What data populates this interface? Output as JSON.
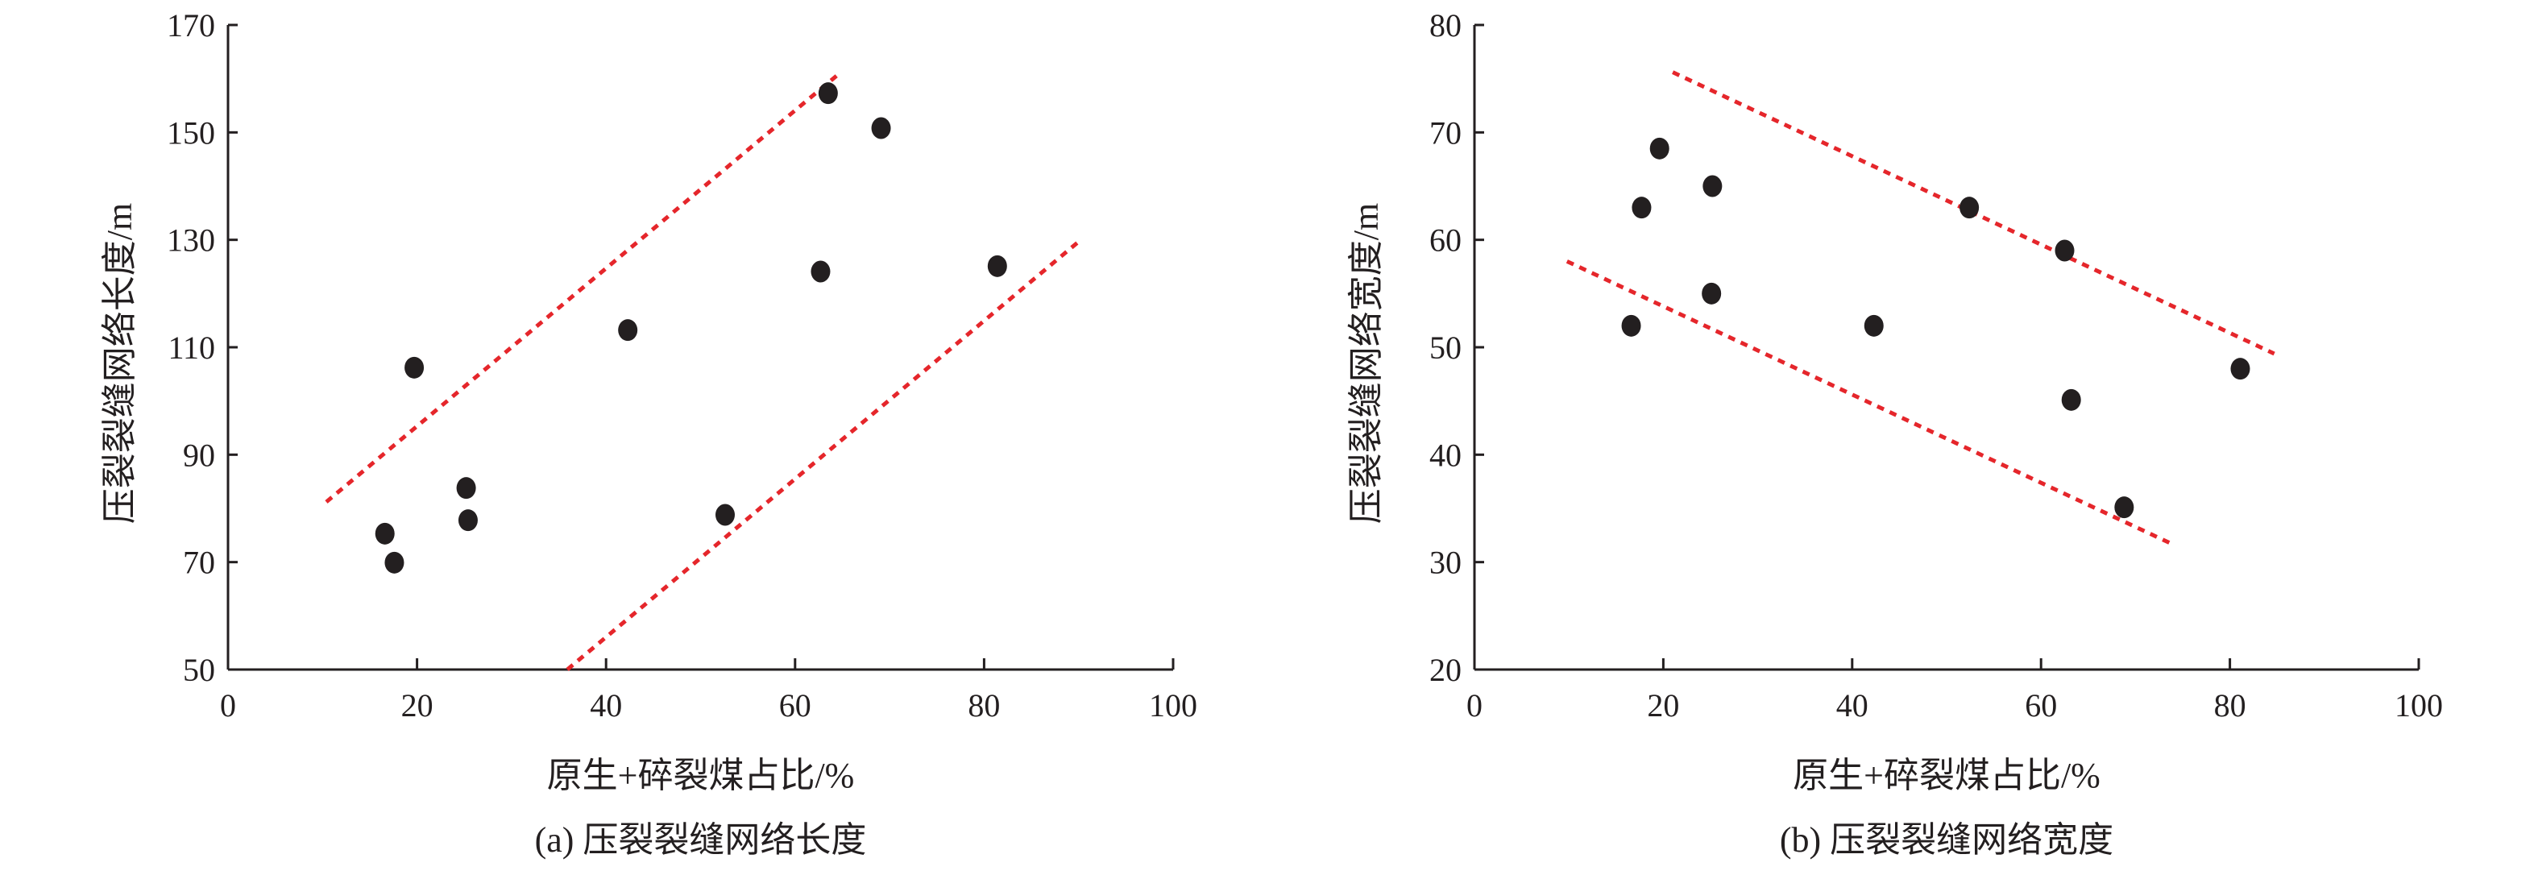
{
  "chart_data": [
    {
      "type": "scatter",
      "caption": "(a) 压裂裂缝网络长度",
      "xlabel": "原生+碎裂煤占比/%",
      "ylabel": "压裂裂缝网络长度/m",
      "xlim": [
        0,
        100
      ],
      "ylim": [
        50,
        170
      ],
      "xticks": [
        0,
        20,
        40,
        60,
        80,
        100
      ],
      "yticks": [
        50,
        70,
        90,
        110,
        130,
        150,
        170
      ],
      "grid": false,
      "points": [
        [
          16.6,
          75.3
        ],
        [
          17.6,
          69.9
        ],
        [
          19.7,
          106.2
        ],
        [
          25.2,
          83.8
        ],
        [
          25.4,
          77.8
        ],
        [
          42.3,
          113.2
        ],
        [
          52.6,
          78.8
        ],
        [
          62.7,
          124.1
        ],
        [
          63.5,
          157.3
        ],
        [
          69.1,
          150.8
        ],
        [
          81.4,
          125.1
        ]
      ],
      "bound_lines": [
        [
          [
            10.4,
            81.2
          ],
          [
            64.5,
            160.7
          ]
        ],
        [
          [
            35.9,
            50
          ],
          [
            90.1,
            129.8
          ]
        ]
      ],
      "point_color": "#231f20",
      "line_color": "#e5262b"
    },
    {
      "type": "scatter",
      "caption": "(b) 压裂裂缝网络宽度",
      "xlabel": "原生+碎裂煤占比/%",
      "ylabel": "压裂裂缝网络宽度/m",
      "xlim": [
        0,
        100
      ],
      "ylim": [
        20,
        80
      ],
      "xticks": [
        0,
        20,
        40,
        60,
        80,
        100
      ],
      "yticks": [
        20,
        30,
        40,
        50,
        60,
        70,
        80
      ],
      "grid": false,
      "points": [
        [
          16.6,
          52
        ],
        [
          17.7,
          63
        ],
        [
          19.6,
          68.5
        ],
        [
          25.2,
          65
        ],
        [
          25.1,
          55
        ],
        [
          42.3,
          52
        ],
        [
          52.4,
          63
        ],
        [
          62.5,
          59
        ],
        [
          63.2,
          45.1
        ],
        [
          68.8,
          35.1
        ],
        [
          81.1,
          48
        ]
      ],
      "bound_lines": [
        [
          [
            21,
            75.6
          ],
          [
            84.7,
            49.4
          ]
        ],
        [
          [
            9.8,
            58
          ],
          [
            73.6,
            31.8
          ]
        ]
      ],
      "point_color": "#231f20",
      "line_color": "#e5262b"
    }
  ]
}
